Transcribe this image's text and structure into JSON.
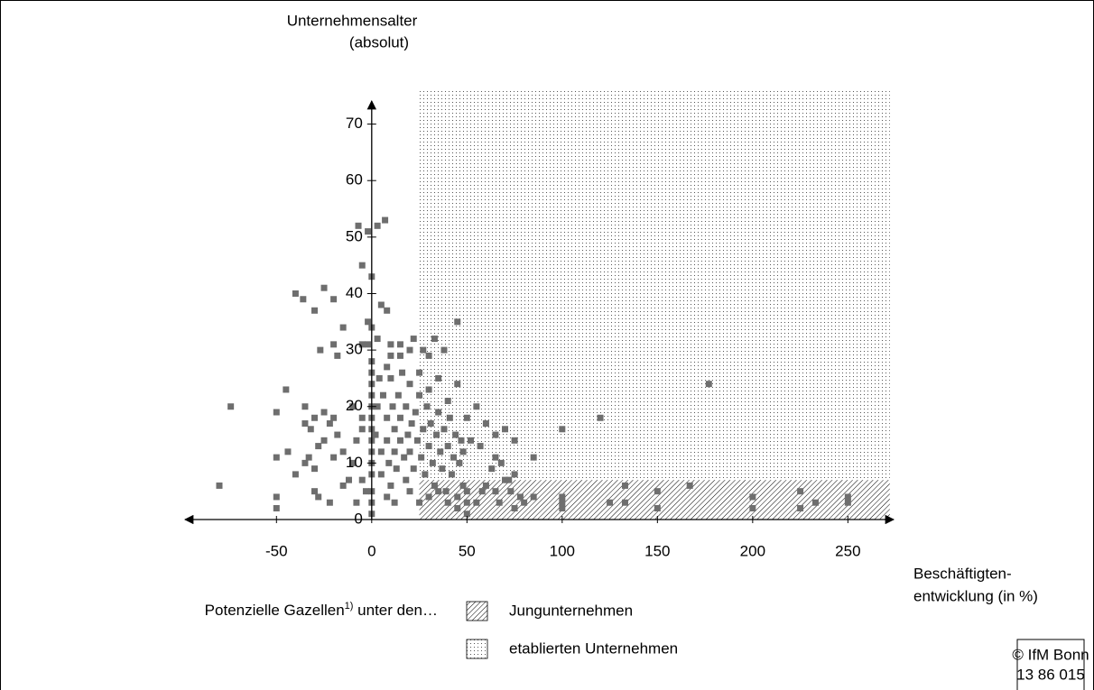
{
  "chart_data": {
    "type": "scatter",
    "y_label": [
      "Unternehmensalter",
      "(absolut)"
    ],
    "x_label": [
      "Beschäftigten-",
      "entwicklung (in %)"
    ],
    "xlim": [
      -98,
      274
    ],
    "ylim": [
      0,
      76
    ],
    "xticks": [
      -50,
      0,
      50,
      100,
      150,
      200,
      250
    ],
    "yticks": [
      0,
      10,
      20,
      30,
      40,
      50,
      60,
      70
    ],
    "color": "#6e6e6e",
    "regions": [
      {
        "name": "Jungunternehmen",
        "pattern": "hatch",
        "xlim": [
          25,
          272
        ],
        "ylim": [
          0,
          7
        ]
      },
      {
        "name": "etablierten Unternehmen",
        "pattern": "dots",
        "xlim": [
          25,
          272
        ],
        "ylim": [
          7,
          76
        ]
      }
    ],
    "legend_title": "Potenzielle Gazellen",
    "legend_title_sup": "1)",
    "legend_title_rest": " unter den…",
    "source": [
      "© IfM Bonn",
      "13 86 015"
    ],
    "x": [
      -74,
      -80,
      -50,
      -50,
      -50,
      -45,
      -50,
      -44,
      -40,
      -40,
      -36,
      -30,
      -25,
      -20,
      -27,
      -20,
      -18,
      -15,
      -7,
      -2,
      3,
      7,
      -5,
      0,
      -2,
      0,
      5,
      8,
      -5,
      -2,
      3,
      10,
      15,
      10,
      8,
      15,
      20,
      22,
      27,
      30,
      33,
      38,
      45,
      35,
      25,
      30,
      40,
      45,
      55,
      60,
      65,
      70,
      75,
      50,
      52,
      48,
      57,
      65,
      68,
      72,
      75,
      85,
      63,
      58,
      100,
      120,
      177,
      -35,
      -35,
      -32,
      -30,
      -25,
      -22,
      -20,
      -18,
      -25,
      -28,
      -33,
      -35,
      -30,
      -20,
      -15,
      -10,
      -10,
      -5,
      -5,
      -8,
      -12,
      -5,
      -3,
      -30,
      -28,
      -22,
      -15,
      -8,
      0,
      0,
      0,
      0,
      0,
      0,
      0,
      0,
      0,
      0,
      0,
      0,
      0,
      0,
      2,
      3,
      4,
      5,
      5,
      6,
      8,
      8,
      9,
      10,
      10,
      11,
      12,
      12,
      13,
      14,
      15,
      15,
      16,
      17,
      18,
      18,
      19,
      20,
      20,
      21,
      22,
      23,
      24,
      25,
      26,
      27,
      28,
      29,
      30,
      31,
      32,
      33,
      34,
      35,
      36,
      37,
      38,
      39,
      40,
      41,
      42,
      43,
      44,
      45,
      46,
      47,
      48,
      8,
      12,
      20,
      25,
      30,
      35,
      40,
      45,
      50,
      50,
      50,
      55,
      60,
      65,
      67,
      70,
      73,
      75,
      78,
      80,
      85,
      100,
      100,
      100,
      125,
      133,
      133,
      150,
      150,
      167,
      200,
      200,
      225,
      225,
      233,
      250,
      250
    ],
    "values": [
      20,
      6,
      19,
      4,
      2,
      23,
      11,
      12,
      8,
      40,
      39,
      37,
      41,
      39,
      30,
      31,
      29,
      34,
      52,
      51,
      52,
      53,
      45,
      43,
      35,
      34,
      38,
      37,
      31,
      31,
      32,
      31,
      31,
      29,
      27,
      29,
      30,
      32,
      30,
      29,
      32,
      30,
      35,
      25,
      26,
      23,
      21,
      24,
      20,
      17,
      15,
      16,
      14,
      18,
      14,
      12,
      13,
      11,
      10,
      7,
      8,
      11,
      9,
      5,
      16,
      18,
      24,
      20,
      17,
      16,
      18,
      19,
      17,
      18,
      15,
      14,
      13,
      11,
      10,
      9,
      11,
      12,
      10,
      20,
      18,
      16,
      14,
      7,
      7,
      5,
      5,
      4,
      3,
      6,
      3,
      1,
      3,
      5,
      8,
      10,
      12,
      14,
      16,
      18,
      20,
      22,
      24,
      26,
      28,
      15,
      20,
      25,
      12,
      8,
      22,
      18,
      14,
      10,
      25,
      6,
      20,
      16,
      12,
      9,
      22,
      18,
      14,
      26,
      11,
      20,
      7,
      15,
      24,
      12,
      17,
      9,
      19,
      14,
      22,
      11,
      16,
      8,
      20,
      13,
      17,
      10,
      6,
      15,
      19,
      12,
      9,
      16,
      5,
      13,
      18,
      8,
      11,
      15,
      4,
      10,
      14,
      6,
      4,
      3,
      5,
      3,
      4,
      5,
      3,
      2,
      5,
      3,
      1,
      3,
      6,
      5,
      3,
      7,
      5,
      2,
      4,
      3,
      4,
      4,
      3,
      2,
      3,
      6,
      3,
      5,
      2,
      6,
      4,
      2,
      5,
      2,
      3,
      4,
      3
    ]
  }
}
